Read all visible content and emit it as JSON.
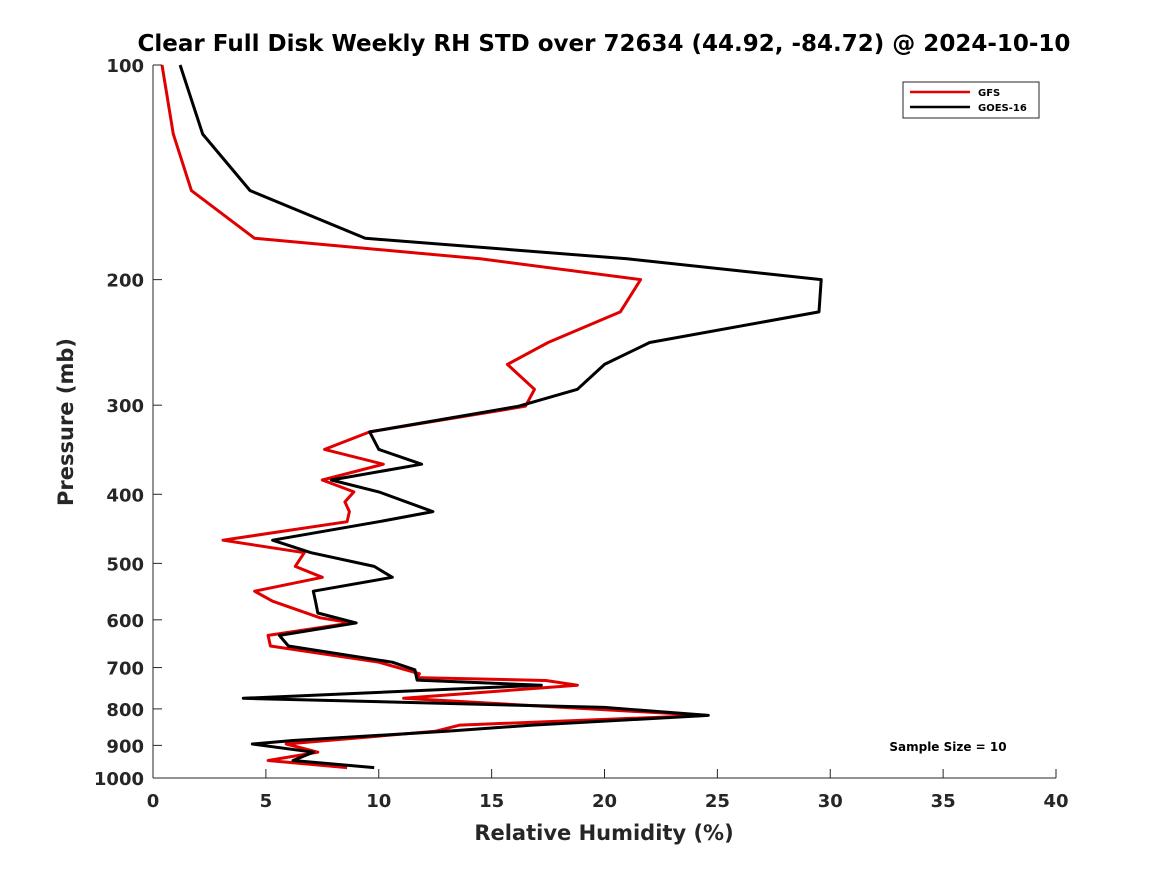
{
  "chart_data": {
    "type": "line",
    "title": "Clear Full Disk Weekly RH STD over 72634 (44.92, -84.72) @ 2024-10-10",
    "xlabel": "Relative Humidity (%)",
    "ylabel": "Pressure (mb)",
    "xlim": [
      0,
      40
    ],
    "ylim": [
      100,
      1000
    ],
    "yscale": "log",
    "y_reversed": true,
    "grid": false,
    "legend_position": "top-right",
    "x_ticks": [
      0,
      5,
      10,
      15,
      20,
      25,
      30,
      35,
      40
    ],
    "x_tick_labels": [
      "0",
      "5",
      "10",
      "15",
      "20",
      "25",
      "30",
      "35",
      "40"
    ],
    "y_ticks": [
      100,
      200,
      300,
      400,
      500,
      600,
      700,
      800,
      900,
      1000
    ],
    "y_tick_labels": [
      "100",
      "200",
      "300",
      "400",
      "500",
      "600",
      "700",
      "800",
      "900",
      "1000"
    ],
    "annotation": "Sample Size = 10",
    "series": [
      {
        "name": "GFS",
        "color": "#e00000",
        "points": [
          {
            "rh": 0.4,
            "p": 100
          },
          {
            "rh": 0.9,
            "p": 125
          },
          {
            "rh": 1.7,
            "p": 150
          },
          {
            "rh": 4.5,
            "p": 175
          },
          {
            "rh": 14.5,
            "p": 187
          },
          {
            "rh": 21.6,
            "p": 200
          },
          {
            "rh": 20.7,
            "p": 222
          },
          {
            "rh": 17.5,
            "p": 245
          },
          {
            "rh": 15.7,
            "p": 263
          },
          {
            "rh": 16.9,
            "p": 285
          },
          {
            "rh": 16.5,
            "p": 301
          },
          {
            "rh": 9.6,
            "p": 327
          },
          {
            "rh": 7.6,
            "p": 346
          },
          {
            "rh": 10.2,
            "p": 363
          },
          {
            "rh": 7.5,
            "p": 382
          },
          {
            "rh": 8.9,
            "p": 397
          },
          {
            "rh": 8.5,
            "p": 410
          },
          {
            "rh": 8.7,
            "p": 423
          },
          {
            "rh": 8.6,
            "p": 437
          },
          {
            "rh": 3.1,
            "p": 464
          },
          {
            "rh": 6.7,
            "p": 483
          },
          {
            "rh": 6.3,
            "p": 505
          },
          {
            "rh": 7.5,
            "p": 523
          },
          {
            "rh": 4.5,
            "p": 547
          },
          {
            "rh": 5.3,
            "p": 565
          },
          {
            "rh": 7.4,
            "p": 596
          },
          {
            "rh": 8.8,
            "p": 606
          },
          {
            "rh": 5.1,
            "p": 631
          },
          {
            "rh": 5.2,
            "p": 653
          },
          {
            "rh": 10.0,
            "p": 688
          },
          {
            "rh": 11.8,
            "p": 714
          },
          {
            "rh": 11.7,
            "p": 723
          },
          {
            "rh": 17.4,
            "p": 730
          },
          {
            "rh": 18.8,
            "p": 741
          },
          {
            "rh": 11.1,
            "p": 773
          },
          {
            "rh": 24.5,
            "p": 817
          },
          {
            "rh": 13.6,
            "p": 843
          },
          {
            "rh": 12.5,
            "p": 860
          },
          {
            "rh": 5.9,
            "p": 896
          },
          {
            "rh": 7.3,
            "p": 920
          },
          {
            "rh": 5.1,
            "p": 945
          },
          {
            "rh": 8.6,
            "p": 967
          }
        ]
      },
      {
        "name": "GOES-16",
        "color": "#000000",
        "points": [
          {
            "rh": 1.2,
            "p": 100
          },
          {
            "rh": 2.2,
            "p": 125
          },
          {
            "rh": 4.3,
            "p": 150
          },
          {
            "rh": 9.4,
            "p": 175
          },
          {
            "rh": 21.0,
            "p": 187
          },
          {
            "rh": 29.6,
            "p": 200
          },
          {
            "rh": 29.5,
            "p": 222
          },
          {
            "rh": 22.0,
            "p": 245
          },
          {
            "rh": 20.0,
            "p": 263
          },
          {
            "rh": 18.8,
            "p": 285
          },
          {
            "rh": 16.2,
            "p": 301
          },
          {
            "rh": 9.6,
            "p": 327
          },
          {
            "rh": 10.0,
            "p": 346
          },
          {
            "rh": 11.9,
            "p": 363
          },
          {
            "rh": 7.9,
            "p": 382
          },
          {
            "rh": 10.0,
            "p": 397
          },
          {
            "rh": 12.4,
            "p": 423
          },
          {
            "rh": 10.0,
            "p": 437
          },
          {
            "rh": 5.3,
            "p": 464
          },
          {
            "rh": 7.0,
            "p": 483
          },
          {
            "rh": 9.8,
            "p": 505
          },
          {
            "rh": 10.6,
            "p": 523
          },
          {
            "rh": 7.1,
            "p": 547
          },
          {
            "rh": 7.2,
            "p": 565
          },
          {
            "rh": 7.3,
            "p": 587
          },
          {
            "rh": 9.0,
            "p": 606
          },
          {
            "rh": 5.6,
            "p": 631
          },
          {
            "rh": 6.0,
            "p": 653
          },
          {
            "rh": 10.6,
            "p": 688
          },
          {
            "rh": 11.6,
            "p": 705
          },
          {
            "rh": 11.7,
            "p": 729
          },
          {
            "rh": 17.2,
            "p": 741
          },
          {
            "rh": 4.0,
            "p": 773
          },
          {
            "rh": 20.0,
            "p": 796
          },
          {
            "rh": 24.6,
            "p": 817
          },
          {
            "rh": 16.8,
            "p": 843
          },
          {
            "rh": 13.0,
            "p": 860
          },
          {
            "rh": 6.2,
            "p": 886
          },
          {
            "rh": 4.4,
            "p": 896
          },
          {
            "rh": 7.1,
            "p": 920
          },
          {
            "rh": 6.2,
            "p": 945
          },
          {
            "rh": 9.8,
            "p": 967
          }
        ]
      }
    ]
  }
}
